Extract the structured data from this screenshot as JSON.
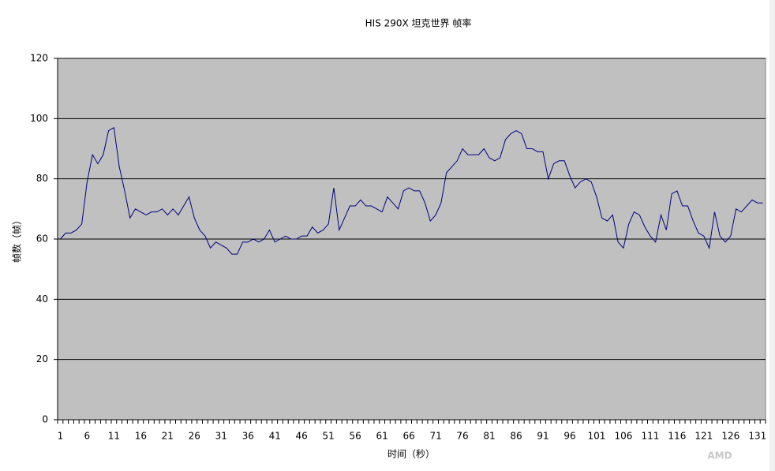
{
  "chart_data": {
    "type": "line",
    "title": "HIS 290X 坦克世界 帧率",
    "x_label": "时间（秒）",
    "y_label": "帧数（帧）",
    "watermark": "AMD",
    "categories": [
      "1",
      null,
      null,
      null,
      null,
      "6",
      null,
      null,
      null,
      null,
      "11",
      null,
      null,
      null,
      null,
      "16",
      null,
      null,
      null,
      null,
      "21",
      null,
      null,
      null,
      null,
      "26",
      null,
      null,
      null,
      null,
      "31",
      null,
      null,
      null,
      null,
      "36",
      null,
      null,
      null,
      null,
      "41",
      null,
      null,
      null,
      null,
      "46",
      null,
      null,
      null,
      null,
      "51",
      null,
      null,
      null,
      null,
      "56",
      null,
      null,
      null,
      null,
      "61",
      null,
      null,
      null,
      null,
      "66",
      null,
      null,
      null,
      null,
      "71",
      null,
      null,
      null,
      null,
      "76",
      null,
      null,
      null,
      null,
      "81",
      null,
      null,
      null,
      null,
      "86",
      null,
      null,
      null,
      null,
      "91",
      null,
      null,
      null,
      null,
      "96",
      null,
      null,
      null,
      null,
      "101",
      null,
      null,
      null,
      null,
      "106",
      null,
      null,
      null,
      null,
      "111",
      null,
      null,
      null,
      null,
      "116",
      null,
      null,
      null,
      null,
      "121",
      null,
      null,
      null,
      null,
      "126",
      null,
      null,
      null,
      null,
      "131",
      null
    ],
    "values": [
      60,
      62,
      62,
      63,
      65,
      79,
      88,
      85,
      88,
      96,
      97,
      84,
      76,
      67,
      70,
      69,
      68,
      69,
      69,
      70,
      68,
      70,
      68,
      71,
      74,
      67,
      63,
      61,
      57,
      59,
      58,
      57,
      55,
      55,
      59,
      59,
      60,
      59,
      60,
      63,
      59,
      60,
      61,
      60,
      60,
      61,
      61,
      64,
      62,
      63,
      65,
      77,
      63,
      67,
      71,
      71,
      73,
      71,
      71,
      70,
      69,
      74,
      72,
      70,
      76,
      77,
      76,
      76,
      72,
      66,
      68,
      72,
      82,
      84,
      86,
      90,
      88,
      88,
      88,
      90,
      87,
      86,
      87,
      93,
      95,
      96,
      95,
      90,
      90,
      89,
      89,
      80,
      85,
      86,
      86,
      81,
      77,
      79,
      80,
      79,
      74,
      67,
      66,
      68,
      59,
      57,
      65,
      69,
      68,
      64,
      61,
      59,
      68,
      63,
      75,
      76,
      71,
      71,
      66,
      62,
      61,
      57,
      69,
      61,
      59,
      61,
      70,
      69,
      71,
      73,
      72,
      72
    ],
    "color": "#000080",
    "ylim": [
      0,
      120
    ],
    "yticks": [
      0,
      20,
      40,
      60,
      80,
      100,
      120
    ],
    "grid": true,
    "plot_background": "#c0c0c0"
  }
}
